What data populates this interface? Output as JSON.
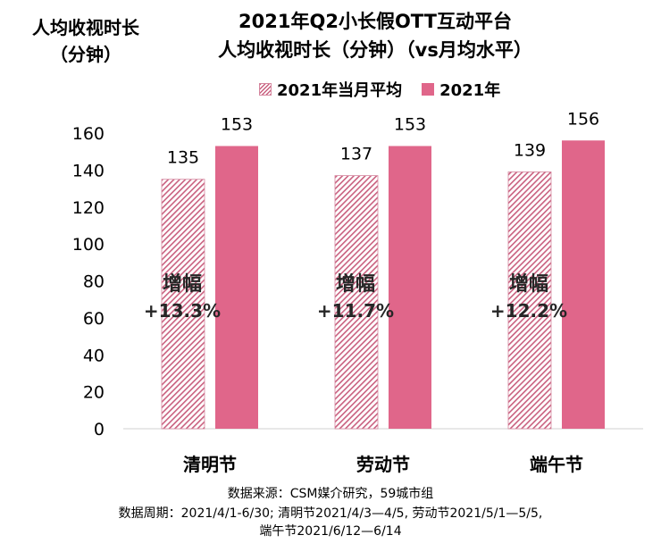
{
  "chart_data": {
    "type": "bar",
    "title_line1": "2021年Q2小长假OTT互动平台",
    "title_line2": "人均收视时长（分钟）（vs月均水平）",
    "ylabel_line1": "人均收视时长",
    "ylabel_line2": "（分钟）",
    "categories": [
      "清明节",
      "劳动节",
      "端午节"
    ],
    "series": [
      {
        "name": "2021年当月平均",
        "values": [
          135,
          137,
          139
        ],
        "style": "hatched",
        "color": "#c9607f"
      },
      {
        "name": "2021年",
        "values": [
          153,
          153,
          156
        ],
        "style": "solid",
        "color": "#e0668a"
      }
    ],
    "annotations": [
      {
        "label": "增幅",
        "value": "+13.3%"
      },
      {
        "label": "增幅",
        "value": "+11.7%"
      },
      {
        "label": "增幅",
        "value": "+12.2%"
      }
    ],
    "ylim": [
      0,
      160
    ],
    "yticks": [
      0,
      20,
      40,
      60,
      80,
      100,
      120,
      140,
      160
    ],
    "grid": false,
    "legend_position": "top"
  },
  "footer": {
    "line1": "数据来源：CSM媒介研究，59城市组",
    "line2": "数据周期：2021/4/1-6/30; 清明节2021/4/3—4/5, 劳动节2021/5/1—5/5,",
    "line3": "端午节2021/6/12—6/14"
  }
}
